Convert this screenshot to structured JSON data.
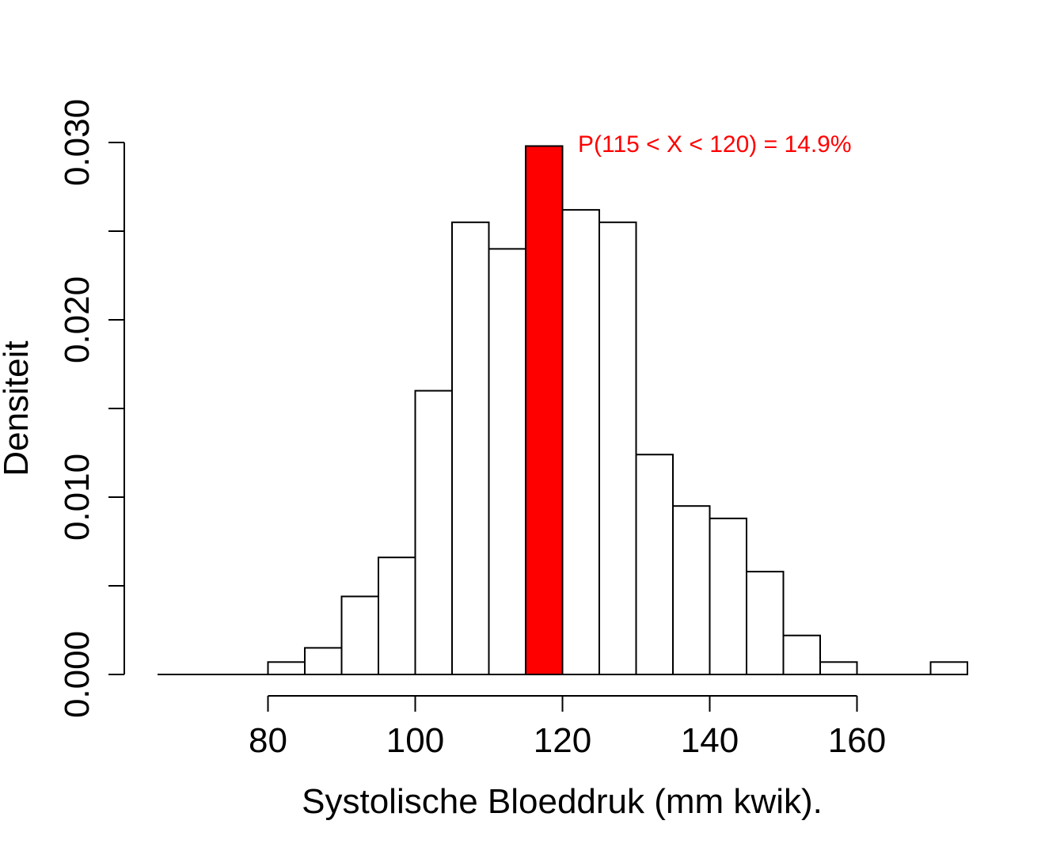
{
  "chart_data": {
    "type": "bar",
    "histogram": true,
    "xlabel": "Systolische Bloeddruk (mm kwik).",
    "ylabel": "Densiteit",
    "xlim": [
      65,
      175
    ],
    "ylim": [
      0,
      0.03
    ],
    "x_ticks": [
      80,
      100,
      120,
      140,
      160
    ],
    "y_ticks": [
      0.0,
      0.005,
      0.01,
      0.015,
      0.02,
      0.025,
      0.03
    ],
    "y_tick_labels": [
      "0.000",
      "",
      "0.010",
      "",
      "0.020",
      "",
      "0.030"
    ],
    "bin_width": 5,
    "bins": [
      {
        "start": 65,
        "end": 70,
        "density": 0.0
      },
      {
        "start": 70,
        "end": 75,
        "density": 0.0
      },
      {
        "start": 75,
        "end": 80,
        "density": 0.0
      },
      {
        "start": 80,
        "end": 85,
        "density": 0.0007
      },
      {
        "start": 85,
        "end": 90,
        "density": 0.0015
      },
      {
        "start": 90,
        "end": 95,
        "density": 0.0044
      },
      {
        "start": 95,
        "end": 100,
        "density": 0.0066
      },
      {
        "start": 100,
        "end": 105,
        "density": 0.016
      },
      {
        "start": 105,
        "end": 110,
        "density": 0.0255
      },
      {
        "start": 110,
        "end": 115,
        "density": 0.024
      },
      {
        "start": 115,
        "end": 120,
        "density": 0.0298,
        "highlight": true
      },
      {
        "start": 120,
        "end": 125,
        "density": 0.0262
      },
      {
        "start": 125,
        "end": 130,
        "density": 0.0255
      },
      {
        "start": 130,
        "end": 135,
        "density": 0.0124
      },
      {
        "start": 135,
        "end": 140,
        "density": 0.0095
      },
      {
        "start": 140,
        "end": 145,
        "density": 0.0088
      },
      {
        "start": 145,
        "end": 150,
        "density": 0.0058
      },
      {
        "start": 150,
        "end": 155,
        "density": 0.0022
      },
      {
        "start": 155,
        "end": 160,
        "density": 0.0007
      },
      {
        "start": 160,
        "end": 165,
        "density": 0.0
      },
      {
        "start": 165,
        "end": 170,
        "density": 0.0
      },
      {
        "start": 170,
        "end": 175,
        "density": 0.0007
      }
    ],
    "annotation": "P(115 < X < 120) = 14.9%",
    "colors": {
      "highlight": "#ff0000",
      "bar_fill": "#ffffff",
      "bar_stroke": "#000000",
      "annotation": "#ff0000"
    }
  }
}
